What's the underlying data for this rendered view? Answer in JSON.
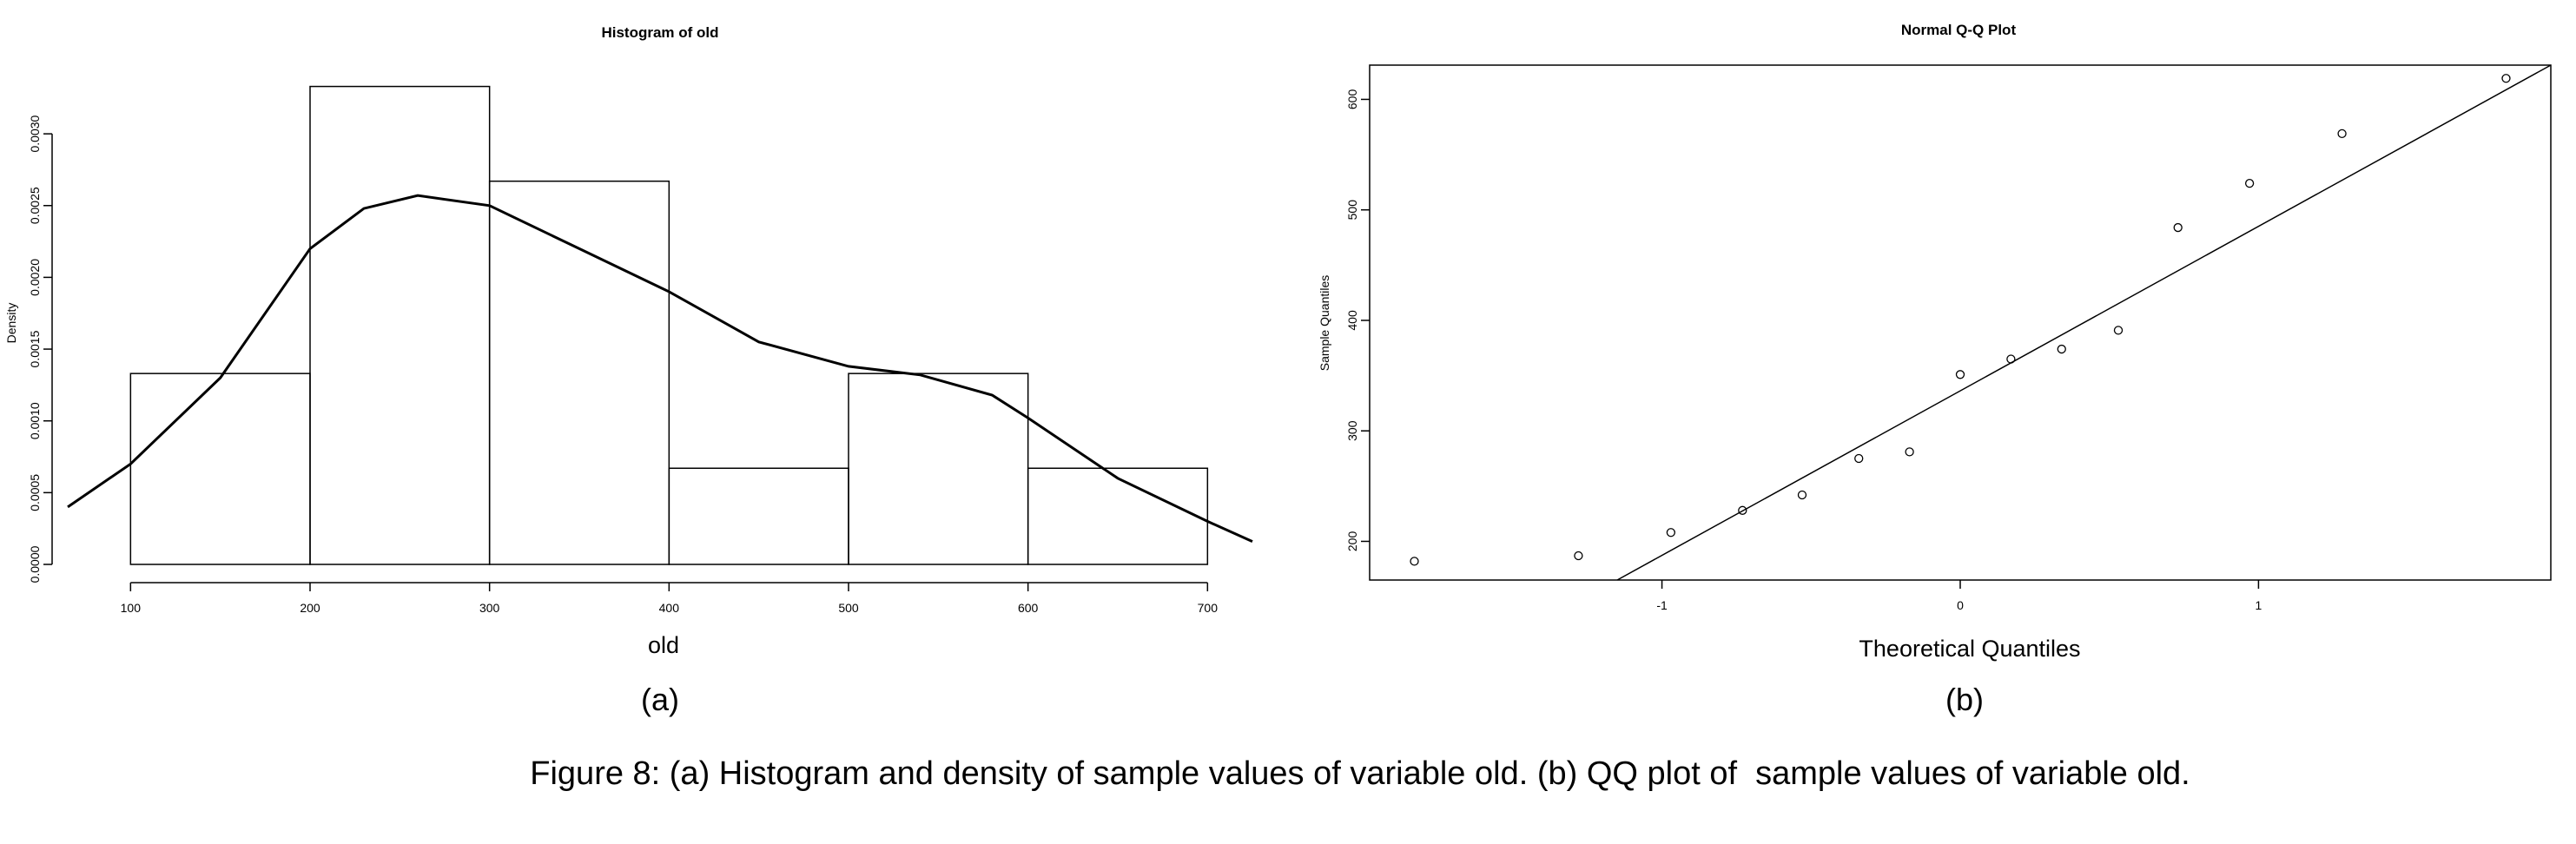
{
  "figure": {
    "caption": "Figure 8: (a) Histogram and density of sample values of variable old. (b) QQ plot of  sample values of variable old.",
    "panel_a_label": "(a)",
    "panel_b_label": "(b)"
  },
  "chart_data": [
    {
      "type": "histogram",
      "title": "Histogram of old",
      "xlabel": "old",
      "ylabel": "Density",
      "bins": [
        {
          "from": 100,
          "to": 200,
          "density": 0.00133
        },
        {
          "from": 200,
          "to": 300,
          "density": 0.00333
        },
        {
          "from": 300,
          "to": 400,
          "density": 0.00267
        },
        {
          "from": 400,
          "to": 500,
          "density": 0.00067
        },
        {
          "from": 500,
          "to": 600,
          "density": 0.00133
        },
        {
          "from": 600,
          "to": 700,
          "density": 0.00067
        }
      ],
      "density_curve": [
        [
          65,
          0.0004
        ],
        [
          100,
          0.0007
        ],
        [
          150,
          0.0013
        ],
        [
          200,
          0.0022
        ],
        [
          230,
          0.00248
        ],
        [
          260,
          0.00257
        ],
        [
          300,
          0.0025
        ],
        [
          350,
          0.0022
        ],
        [
          400,
          0.0019
        ],
        [
          450,
          0.00155
        ],
        [
          500,
          0.00138
        ],
        [
          540,
          0.00132
        ],
        [
          580,
          0.00118
        ],
        [
          600,
          0.00102
        ],
        [
          650,
          0.0006
        ],
        [
          700,
          0.0003
        ],
        [
          725,
          0.00016
        ]
      ],
      "xlim": [
        65,
        725
      ],
      "ylim": [
        0,
        0.0034
      ],
      "xticks": [
        "100",
        "200",
        "300",
        "400",
        "500",
        "600",
        "700"
      ],
      "yticks": [
        "0.0000",
        "0.0005",
        "0.0010",
        "0.0015",
        "0.0020",
        "0.0025",
        "0.0030"
      ]
    },
    {
      "type": "scatter",
      "title": "Normal Q-Q Plot",
      "xlabel": "Theoretical Quantiles",
      "ylabel": "Sample Quantiles",
      "points": [
        [
          -1.83,
          182
        ],
        [
          -1.28,
          187
        ],
        [
          -0.97,
          208
        ],
        [
          -0.73,
          228
        ],
        [
          -0.53,
          242
        ],
        [
          -0.34,
          275
        ],
        [
          -0.17,
          281
        ],
        [
          0.0,
          351
        ],
        [
          0.17,
          365
        ],
        [
          0.34,
          374
        ],
        [
          0.53,
          391
        ],
        [
          0.73,
          484
        ],
        [
          0.97,
          524
        ],
        [
          1.28,
          569
        ],
        [
          1.83,
          619
        ]
      ],
      "reference_line": [
        [
          -1.15,
          165
        ],
        [
          1.98,
          631
        ]
      ],
      "xlim": [
        -1.98,
        1.98
      ],
      "ylim": [
        165,
        631
      ],
      "xticks": [
        "-1",
        "0",
        "1"
      ],
      "yticks": [
        "200",
        "300",
        "400",
        "500",
        "600"
      ],
      "grid": false,
      "box": true
    }
  ]
}
